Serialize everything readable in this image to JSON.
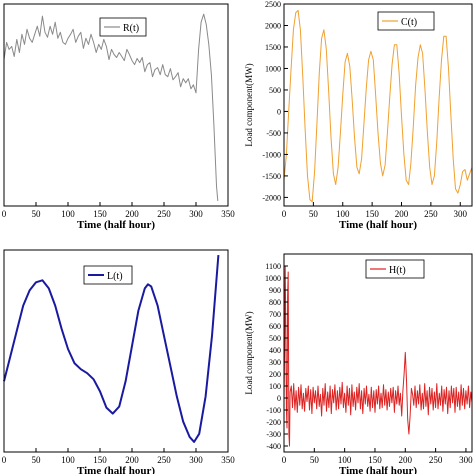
{
  "figure": {
    "background": "#ffffff"
  },
  "chart_data": [
    {
      "id": "R",
      "type": "line",
      "title": "",
      "xlabel": "Time (half hour)",
      "ylabel": "",
      "xlim": [
        0,
        350
      ],
      "ylim": [
        -1,
        1
      ],
      "xticks": [
        0,
        50,
        100,
        150,
        200,
        250,
        300,
        350
      ],
      "yticks": [],
      "grid": false,
      "legend": "top-right",
      "color": "#8a8a8a",
      "series": [
        {
          "name": "R(t)",
          "x": [
            0,
            4,
            8,
            12,
            16,
            20,
            24,
            28,
            32,
            36,
            40,
            44,
            48,
            52,
            56,
            60,
            64,
            68,
            72,
            76,
            80,
            84,
            88,
            92,
            96,
            100,
            104,
            108,
            112,
            116,
            120,
            124,
            128,
            132,
            136,
            140,
            144,
            148,
            152,
            156,
            160,
            164,
            168,
            172,
            176,
            180,
            184,
            188,
            192,
            196,
            200,
            204,
            208,
            212,
            216,
            220,
            224,
            228,
            232,
            236,
            240,
            244,
            248,
            252,
            256,
            260,
            264,
            268,
            272,
            276,
            280,
            284,
            288,
            292,
            296,
            300,
            304,
            308,
            312,
            316,
            320,
            324,
            328,
            332,
            334
          ],
          "values": [
            0.45,
            0.62,
            0.55,
            0.58,
            0.48,
            0.65,
            0.52,
            0.7,
            0.6,
            0.75,
            0.66,
            0.62,
            0.7,
            0.78,
            0.68,
            0.88,
            0.72,
            0.67,
            0.78,
            0.7,
            0.82,
            0.66,
            0.72,
            0.62,
            0.6,
            0.66,
            0.7,
            0.75,
            0.62,
            0.68,
            0.72,
            0.56,
            0.66,
            0.6,
            0.7,
            0.62,
            0.52,
            0.6,
            0.55,
            0.65,
            0.58,
            0.45,
            0.55,
            0.5,
            0.47,
            0.52,
            0.48,
            0.44,
            0.55,
            0.5,
            0.44,
            0.4,
            0.46,
            0.42,
            0.47,
            0.33,
            0.4,
            0.42,
            0.28,
            0.35,
            0.37,
            0.3,
            0.4,
            0.3,
            0.28,
            0.36,
            0.25,
            0.28,
            0.32,
            0.18,
            0.26,
            0.22,
            0.26,
            0.16,
            0.2,
            0.12,
            0.55,
            0.82,
            0.9,
            0.8,
            0.6,
            0.3,
            -0.2,
            -0.8,
            -0.95
          ]
        }
      ]
    },
    {
      "id": "C",
      "type": "line",
      "title": "",
      "xlabel": "Time (half hour)",
      "ylabel": "Load component(MW)",
      "xlim": [
        0,
        320
      ],
      "ylim": [
        -2200,
        2500
      ],
      "xticks": [
        0,
        50,
        100,
        150,
        200,
        250,
        300
      ],
      "yticks": [
        -2000,
        -1500,
        -1000,
        -500,
        0,
        500,
        1000,
        1500,
        2000,
        2500
      ],
      "grid": false,
      "legend": "top-right",
      "color": "#f0a030",
      "series": [
        {
          "name": "C(t)",
          "x": [
            0,
            4,
            8,
            12,
            16,
            20,
            24,
            28,
            32,
            36,
            40,
            44,
            48,
            52,
            56,
            60,
            64,
            68,
            72,
            76,
            80,
            84,
            88,
            92,
            96,
            100,
            104,
            108,
            112,
            116,
            120,
            124,
            128,
            132,
            136,
            140,
            144,
            148,
            152,
            156,
            160,
            164,
            168,
            172,
            176,
            180,
            184,
            188,
            192,
            196,
            200,
            204,
            208,
            212,
            216,
            220,
            224,
            228,
            232,
            236,
            240,
            244,
            248,
            252,
            256,
            260,
            264,
            268,
            272,
            276,
            280,
            284,
            288,
            292,
            296,
            300,
            304,
            308,
            312,
            316,
            320
          ],
          "values": [
            -1600,
            -1000,
            0,
            1000,
            1900,
            2300,
            2350,
            1900,
            800,
            -400,
            -1500,
            -2050,
            -2100,
            -1400,
            -300,
            900,
            1700,
            1900,
            1450,
            500,
            -600,
            -1450,
            -1700,
            -1300,
            -500,
            400,
            1150,
            1350,
            1050,
            300,
            -600,
            -1300,
            -1450,
            -1100,
            -300,
            550,
            1200,
            1400,
            1200,
            400,
            -500,
            -1200,
            -1500,
            -1250,
            -500,
            350,
            1100,
            1550,
            1550,
            900,
            -100,
            -1000,
            -1600,
            -1700,
            -1200,
            -350,
            600,
            1250,
            1550,
            1350,
            500,
            -500,
            -1300,
            -1700,
            -1500,
            -700,
            300,
            1200,
            1750,
            1750,
            1000,
            -100,
            -1100,
            -1800,
            -1900,
            -1700,
            -1400,
            -1350,
            -1600,
            -1450,
            -1300
          ]
        }
      ]
    },
    {
      "id": "L",
      "type": "line",
      "title": "",
      "xlabel": "Time (half hour)",
      "ylabel": "",
      "xlim": [
        0,
        350
      ],
      "ylim": [
        -1,
        1
      ],
      "xticks": [
        0,
        50,
        100,
        150,
        200,
        250,
        300,
        350
      ],
      "yticks": [],
      "grid": false,
      "legend": "top-left",
      "color": "#1a1aa0",
      "series": [
        {
          "name": "L(t)",
          "x": [
            0,
            10,
            20,
            30,
            40,
            50,
            60,
            70,
            80,
            90,
            100,
            110,
            120,
            130,
            140,
            150,
            160,
            170,
            180,
            190,
            200,
            210,
            220,
            225,
            230,
            240,
            250,
            260,
            270,
            280,
            290,
            297,
            305,
            315,
            325,
            335
          ],
          "values": [
            -0.3,
            -0.05,
            0.2,
            0.45,
            0.6,
            0.68,
            0.7,
            0.62,
            0.45,
            0.22,
            0.02,
            -0.12,
            -0.18,
            -0.22,
            -0.28,
            -0.4,
            -0.56,
            -0.62,
            -0.55,
            -0.3,
            0.05,
            0.4,
            0.62,
            0.66,
            0.64,
            0.45,
            0.15,
            -0.15,
            -0.45,
            -0.7,
            -0.85,
            -0.9,
            -0.82,
            -0.45,
            0.15,
            0.95
          ]
        }
      ]
    },
    {
      "id": "H",
      "type": "line",
      "title": "",
      "xlabel": "Time (half hour)",
      "ylabel": "Load component(MW)",
      "xlim": [
        0,
        310
      ],
      "ylim": [
        -450,
        1200
      ],
      "xticks": [
        0,
        50,
        100,
        150,
        200,
        250,
        300
      ],
      "yticks": [
        -400,
        -300,
        -200,
        -100,
        0,
        100,
        200,
        300,
        400,
        500,
        600,
        700,
        800,
        900,
        1000,
        1100
      ],
      "grid": false,
      "legend": "top-right",
      "color": "#dd2222",
      "series": [
        {
          "name": "H(t)",
          "x": [
            0,
            1,
            2,
            3,
            4,
            5,
            6,
            7,
            8,
            9,
            10,
            12,
            14,
            16,
            18,
            20,
            22,
            24,
            26,
            28,
            30,
            32,
            34,
            36,
            38,
            40,
            42,
            44,
            46,
            48,
            50,
            52,
            54,
            56,
            58,
            60,
            62,
            64,
            66,
            68,
            70,
            72,
            74,
            76,
            78,
            80,
            82,
            84,
            86,
            88,
            90,
            92,
            94,
            96,
            98,
            100,
            102,
            104,
            106,
            108,
            110,
            112,
            114,
            116,
            118,
            120,
            122,
            124,
            126,
            128,
            130,
            132,
            134,
            136,
            138,
            140,
            142,
            144,
            146,
            148,
            150,
            152,
            154,
            156,
            158,
            160,
            162,
            164,
            166,
            168,
            170,
            172,
            174,
            176,
            178,
            180,
            182,
            184,
            186,
            188,
            190,
            192,
            194,
            196,
            198,
            200,
            202,
            204,
            206,
            208,
            210,
            212,
            214,
            216,
            218,
            220,
            222,
            224,
            226,
            228,
            230,
            232,
            234,
            236,
            238,
            240,
            242,
            244,
            246,
            248,
            250,
            252,
            254,
            256,
            258,
            260,
            262,
            264,
            266,
            268,
            270,
            272,
            274,
            276,
            278,
            280,
            282,
            284,
            286,
            288,
            290,
            292,
            294,
            296,
            298,
            300,
            302,
            304,
            306,
            308,
            310
          ],
          "values": [
            0,
            400,
            1100,
            600,
            -100,
            -250,
            850,
            1050,
            -300,
            -400,
            50,
            100,
            -80,
            120,
            -100,
            60,
            -120,
            90,
            -60,
            110,
            -90,
            40,
            -110,
            80,
            -30,
            100,
            -100,
            70,
            -130,
            90,
            -40,
            60,
            -90,
            100,
            -70,
            30,
            -150,
            80,
            -60,
            120,
            -110,
            50,
            -80,
            100,
            -130,
            70,
            -40,
            110,
            -100,
            60,
            -90,
            90,
            -50,
            130,
            -80,
            40,
            -120,
            100,
            -60,
            80,
            -140,
            110,
            -70,
            50,
            -100,
            90,
            -40,
            120,
            -90,
            60,
            -130,
            80,
            -50,
            100,
            -70,
            30,
            -110,
            90,
            -80,
            60,
            -120,
            70,
            -50,
            100,
            -90,
            40,
            -80,
            110,
            -60,
            70,
            -100,
            50,
            -70,
            80,
            -40,
            90,
            -120,
            60,
            -50,
            100,
            -60,
            40,
            -150,
            60,
            200,
            380,
            150,
            -180,
            -300,
            -150,
            80,
            30,
            -60,
            100,
            -80,
            60,
            -50,
            110,
            -100,
            40,
            -90,
            120,
            -70,
            60,
            -140,
            90,
            -50,
            80,
            -100,
            50,
            -80,
            120,
            -90,
            40,
            -60,
            100,
            -110,
            70,
            -50,
            90,
            -130,
            60,
            -80,
            100,
            -40,
            80,
            -120,
            90,
            -70,
            50,
            -100,
            110,
            -60,
            80,
            -90,
            60,
            -50,
            100,
            -80,
            50,
            -40
          ]
        }
      ]
    }
  ]
}
